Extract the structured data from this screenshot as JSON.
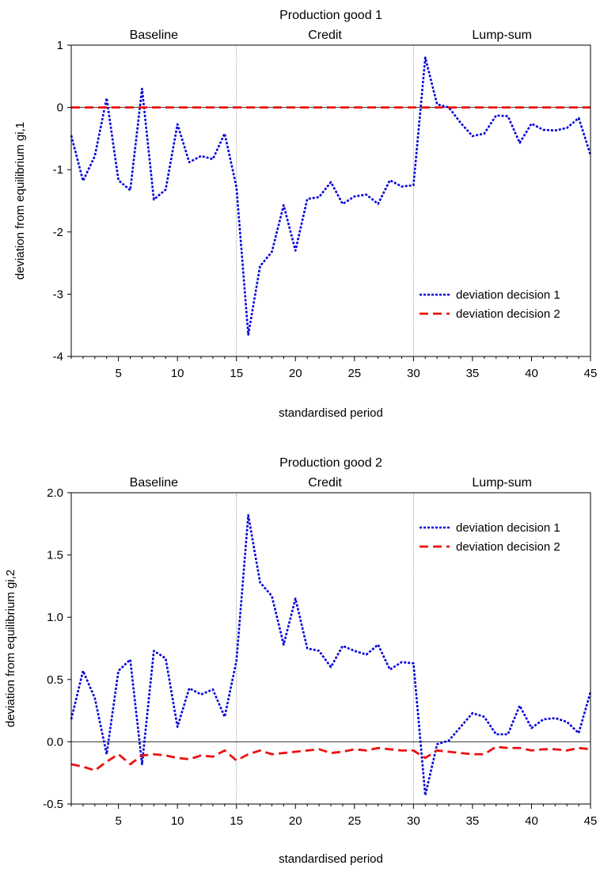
{
  "chart_data": [
    {
      "type": "line",
      "title": "Production good 1",
      "xlabel": "standardised period",
      "ylabel": "deviation from equilibrium gi,1",
      "xlim": [
        1,
        45
      ],
      "ylim": [
        -4,
        1
      ],
      "x_ticks": [
        5,
        10,
        15,
        20,
        25,
        30,
        35,
        40,
        45
      ],
      "y_ticks": [
        -4,
        -3,
        -2,
        -1,
        0,
        1
      ],
      "y_tick_labels": [
        "-4",
        "-3",
        "-2",
        "-1",
        "0",
        "1"
      ],
      "sections": [
        {
          "label": "Baseline",
          "from": 1,
          "to": 15
        },
        {
          "label": "Credit",
          "from": 15,
          "to": 30
        },
        {
          "label": "Lump-sum",
          "from": 30,
          "to": 45
        }
      ],
      "section_dividers": [
        15,
        30
      ],
      "zero_line": true,
      "legend_position": "bottom-right",
      "x": [
        1,
        2,
        3,
        4,
        5,
        6,
        7,
        8,
        9,
        10,
        11,
        12,
        13,
        14,
        15,
        16,
        17,
        18,
        19,
        20,
        21,
        22,
        23,
        24,
        25,
        26,
        27,
        28,
        29,
        30,
        31,
        32,
        33,
        34,
        35,
        36,
        37,
        38,
        39,
        40,
        41,
        42,
        43,
        44,
        45
      ],
      "series": [
        {
          "name": "deviation decision 1",
          "color": "#0000dd",
          "style": "dotted",
          "values": [
            -0.45,
            -1.18,
            -0.78,
            0.15,
            -1.17,
            -1.33,
            0.3,
            -1.48,
            -1.32,
            -0.27,
            -0.88,
            -0.78,
            -0.83,
            -0.42,
            -1.28,
            -3.65,
            -2.55,
            -2.32,
            -1.57,
            -2.3,
            -1.47,
            -1.44,
            -1.2,
            -1.55,
            -1.43,
            -1.4,
            -1.55,
            -1.17,
            -1.27,
            -1.25,
            0.8,
            0.05,
            0.0,
            -0.25,
            -0.46,
            -0.42,
            -0.13,
            -0.14,
            -0.57,
            -0.26,
            -0.36,
            -0.37,
            -0.33,
            -0.17,
            -0.76
          ]
        },
        {
          "name": "deviation decision 2",
          "color": "#ee1111",
          "style": "dashed",
          "values": [
            0,
            0,
            0,
            0,
            0,
            0,
            0,
            0,
            0,
            0,
            0,
            0,
            0,
            0,
            0,
            0,
            0,
            0,
            0,
            0,
            0,
            0,
            0,
            0,
            0,
            0,
            0,
            0,
            0,
            0,
            0,
            0,
            0,
            0,
            0,
            0,
            0,
            0,
            0,
            0,
            0,
            0,
            0,
            0,
            0
          ]
        }
      ]
    },
    {
      "type": "line",
      "title": "Production good 2",
      "xlabel": "standardised period",
      "ylabel": "deviation from equilibrium gi,2",
      "xlim": [
        1,
        45
      ],
      "ylim": [
        -0.5,
        2.0
      ],
      "x_ticks": [
        5,
        10,
        15,
        20,
        25,
        30,
        35,
        40,
        45
      ],
      "y_ticks": [
        -0.5,
        0,
        0.5,
        1.0,
        1.5,
        2.0
      ],
      "y_tick_labels": [
        "-0.5",
        "0.0",
        "0.5",
        "1.0",
        "1.5",
        "2.0"
      ],
      "sections": [
        {
          "label": "Baseline",
          "from": 1,
          "to": 15
        },
        {
          "label": "Credit",
          "from": 15,
          "to": 30
        },
        {
          "label": "Lump-sum",
          "from": 30,
          "to": 45
        }
      ],
      "section_dividers": [
        15,
        30
      ],
      "zero_line": true,
      "legend_position": "top-right",
      "x": [
        1,
        2,
        3,
        4,
        5,
        6,
        7,
        8,
        9,
        10,
        11,
        12,
        13,
        14,
        15,
        16,
        17,
        18,
        19,
        20,
        21,
        22,
        23,
        24,
        25,
        26,
        27,
        28,
        29,
        30,
        31,
        32,
        33,
        34,
        35,
        36,
        37,
        38,
        39,
        40,
        41,
        42,
        43,
        44,
        45
      ],
      "series": [
        {
          "name": "deviation decision 1",
          "color": "#0000dd",
          "style": "dotted",
          "values": [
            0.18,
            0.57,
            0.35,
            -0.1,
            0.57,
            0.66,
            -0.18,
            0.73,
            0.67,
            0.12,
            0.43,
            0.38,
            0.42,
            0.2,
            0.65,
            1.82,
            1.28,
            1.17,
            0.78,
            1.15,
            0.75,
            0.73,
            0.6,
            0.77,
            0.73,
            0.7,
            0.78,
            0.58,
            0.64,
            0.63,
            -0.43,
            -0.02,
            0.01,
            0.12,
            0.23,
            0.2,
            0.06,
            0.06,
            0.29,
            0.11,
            0.18,
            0.19,
            0.16,
            0.07,
            0.4
          ]
        },
        {
          "name": "deviation decision 2",
          "color": "#ee1111",
          "style": "dashed",
          "values": [
            -0.18,
            -0.2,
            -0.23,
            -0.16,
            -0.1,
            -0.18,
            -0.11,
            -0.1,
            -0.11,
            -0.13,
            -0.14,
            -0.11,
            -0.12,
            -0.07,
            -0.15,
            -0.1,
            -0.07,
            -0.1,
            -0.09,
            -0.08,
            -0.07,
            -0.06,
            -0.09,
            -0.08,
            -0.06,
            -0.07,
            -0.05,
            -0.06,
            -0.07,
            -0.07,
            -0.13,
            -0.07,
            -0.08,
            -0.09,
            -0.1,
            -0.1,
            -0.04,
            -0.05,
            -0.05,
            -0.07,
            -0.06,
            -0.06,
            -0.07,
            -0.05,
            -0.06
          ]
        }
      ]
    }
  ]
}
